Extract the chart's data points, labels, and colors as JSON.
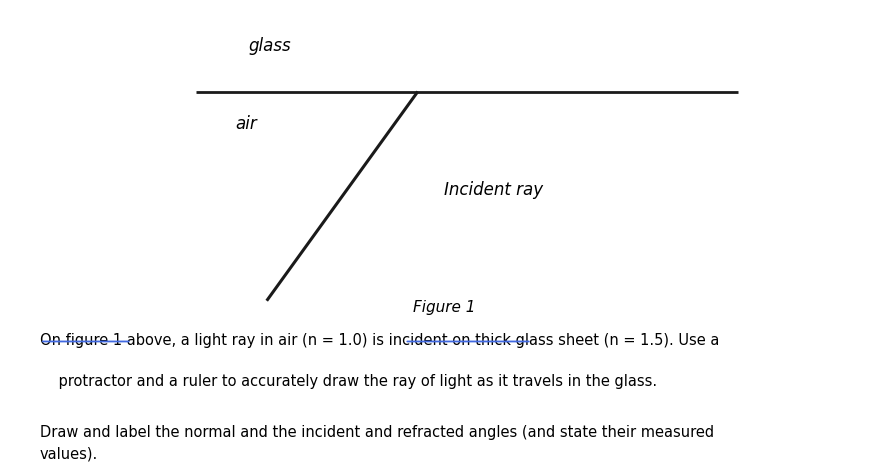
{
  "bg_color": "#ffffff",
  "figure_size": [
    8.89,
    4.67
  ],
  "dpi": 100,
  "glass_label": "glass",
  "glass_label_fontsize": 12,
  "air_label": "air",
  "air_label_fontsize": 12,
  "surface_line_color": "#1a1a1a",
  "surface_line_lw": 2.0,
  "incident_ray_color": "#1a1a1a",
  "incident_ray_lw": 2.2,
  "incident_label": "Incident ray",
  "incident_label_fontsize": 12,
  "figure_caption": "Figure 1",
  "figure_caption_fontsize": 11,
  "paragraph1_line1": "On figure 1 above, a light ray in air (n = 1.0) is incident on thick glass sheet (n = 1.5). Use a",
  "paragraph1_line2": "    protractor and a ruler to accurately draw the ray of light as it travels in the glass.",
  "paragraph1_fontsize": 10.5,
  "paragraph2": "Draw and label the normal and the incident and refracted angles (and state their measured\nvalues).",
  "paragraph2_fontsize": 10.5,
  "text_color": "#000000",
  "underline_color": "#4169E1"
}
